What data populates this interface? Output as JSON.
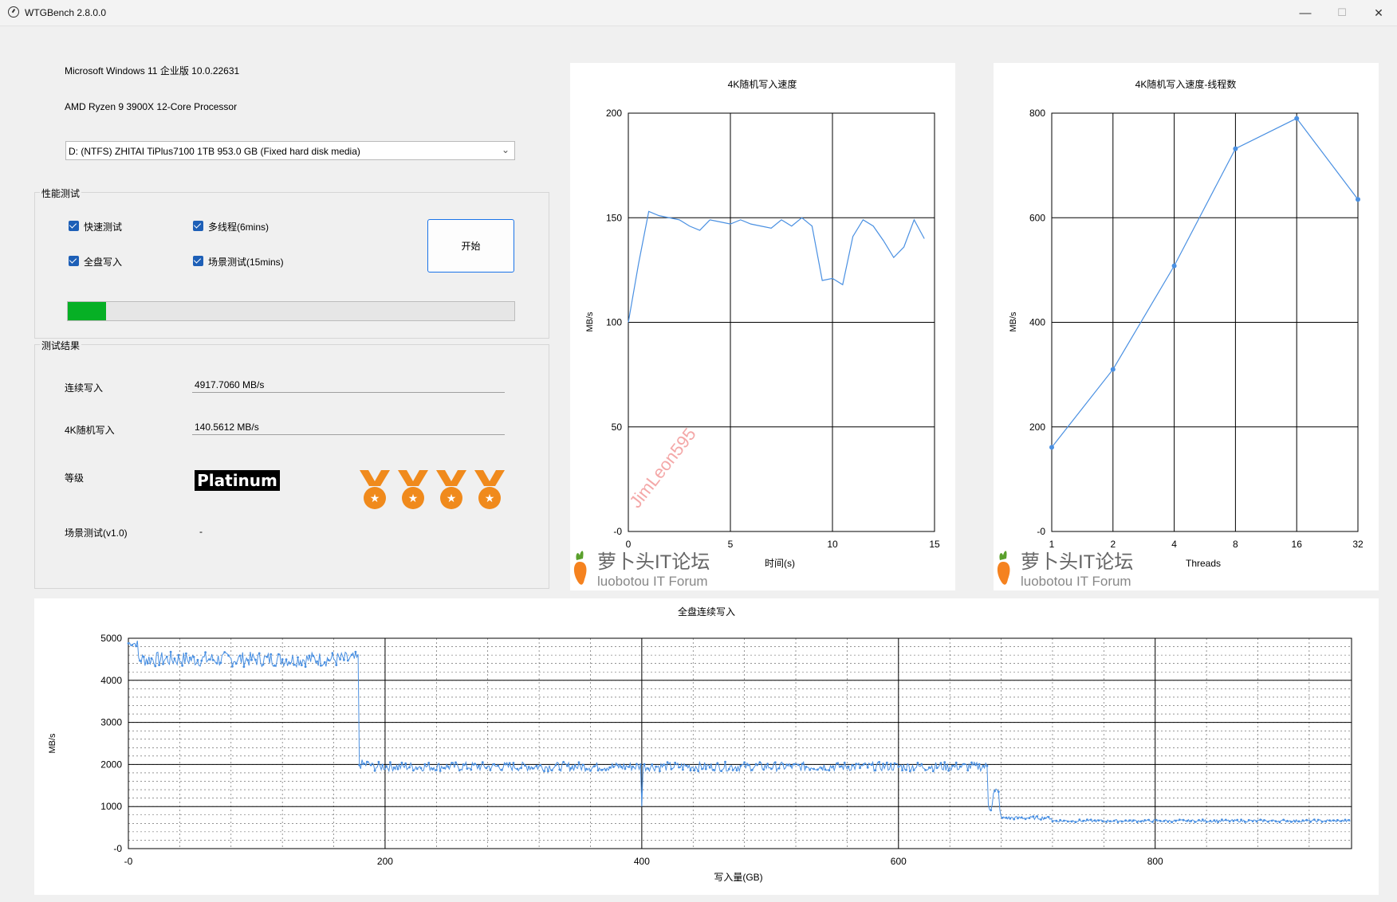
{
  "window": {
    "title": "WTGBench 2.8.0.0",
    "minimize": "—",
    "maximize": "☐",
    "close": "✕"
  },
  "system": {
    "os": "Microsoft Windows 11 企业版 10.0.22631",
    "cpu": "AMD Ryzen 9 3900X 12-Core Processor",
    "drive": "D:  (NTFS) ZHITAI TiPlus7100 1TB 953.0 GB (Fixed hard disk media)"
  },
  "perf": {
    "title": "性能测试",
    "checks": [
      {
        "label": "快速测试",
        "checked": true
      },
      {
        "label": "多线程(6mins)",
        "checked": true
      },
      {
        "label": "全盘写入",
        "checked": true
      },
      {
        "label": "场景测试(15mins)",
        "checked": true
      }
    ],
    "start": "开始",
    "progress": 0.085
  },
  "results": {
    "title": "测试结果",
    "seq_label": "连续写入",
    "seq_value": "4917.7060 MB/s",
    "rand_label": "4K随机写入",
    "rand_value": "140.5612 MB/s",
    "grade_label": "等级",
    "grade_value": "Platinum",
    "medal_count": 4,
    "scene_label": "场景测试(v1.0)",
    "scene_value": "-"
  },
  "watermark": {
    "cn": "萝卜头IT论坛",
    "en": "luobotou IT Forum",
    "user": "JimLeon595"
  },
  "colors": {
    "line": "#4a90e2",
    "progress": "#06b025",
    "medal": "#f08a1c",
    "accent": "#1a73e8"
  },
  "chart_data": [
    {
      "type": "line",
      "title": "4K随机写入速度",
      "xlabel": "时间(s)",
      "ylabel": "MB/s",
      "xlim": [
        0,
        15
      ],
      "ylim": [
        0,
        200
      ],
      "xticks": [
        "0",
        "5",
        "10",
        "15"
      ],
      "yticks": [
        "-0",
        "50",
        "100",
        "150",
        "200"
      ],
      "x": [
        0,
        0.5,
        1,
        1.5,
        2,
        2.5,
        3,
        3.5,
        4,
        4.5,
        5,
        5.5,
        6,
        6.5,
        7,
        7.5,
        8,
        8.5,
        9,
        9.5,
        10,
        10.5,
        11,
        11.5,
        12,
        12.5,
        13,
        13.5,
        14,
        14.5
      ],
      "y": [
        100,
        128,
        153,
        151,
        150,
        149,
        146,
        144,
        149,
        148,
        147,
        149,
        147,
        146,
        145,
        149,
        146,
        150,
        146,
        120,
        121,
        118,
        141,
        149,
        146,
        139,
        131,
        136,
        149,
        140
      ]
    },
    {
      "type": "line",
      "title": "4K随机写入速度-线程数",
      "xlabel": "Threads",
      "ylabel": "MB/s",
      "ylim": [
        0,
        800
      ],
      "categories": [
        "1",
        "2",
        "4",
        "8",
        "16",
        "32"
      ],
      "yticks": [
        "-0",
        "200",
        "400",
        "600",
        "800"
      ],
      "values": [
        161,
        310,
        508,
        732,
        790,
        635
      ]
    },
    {
      "type": "line",
      "title": "全盘连续写入",
      "xlabel": "写入量(GB)",
      "ylabel": "MB/s",
      "xlim": [
        0,
        953
      ],
      "ylim": [
        0,
        5000
      ],
      "xticks": [
        "-0",
        "200",
        "400",
        "600",
        "800"
      ],
      "yticks": [
        "-0",
        "1000",
        "2000",
        "3000",
        "4000",
        "5000"
      ],
      "segments": [
        {
          "x_from": 0,
          "x_to": 8,
          "level": 4880,
          "noise": 80
        },
        {
          "x_from": 8,
          "x_to": 180,
          "level": 4500,
          "noise": 180
        },
        {
          "x_from": 180,
          "x_to": 190,
          "level": 2000,
          "noise": 120
        },
        {
          "x_from": 190,
          "x_to": 670,
          "level": 1950,
          "noise": 110
        },
        {
          "x_from": 670,
          "x_to": 680,
          "level": 1200,
          "noise": 400
        },
        {
          "x_from": 680,
          "x_to": 720,
          "level": 730,
          "noise": 40
        },
        {
          "x_from": 720,
          "x_to": 953,
          "level": 660,
          "noise": 30
        }
      ],
      "dip_at": 400,
      "dip_value": 1000
    }
  ]
}
